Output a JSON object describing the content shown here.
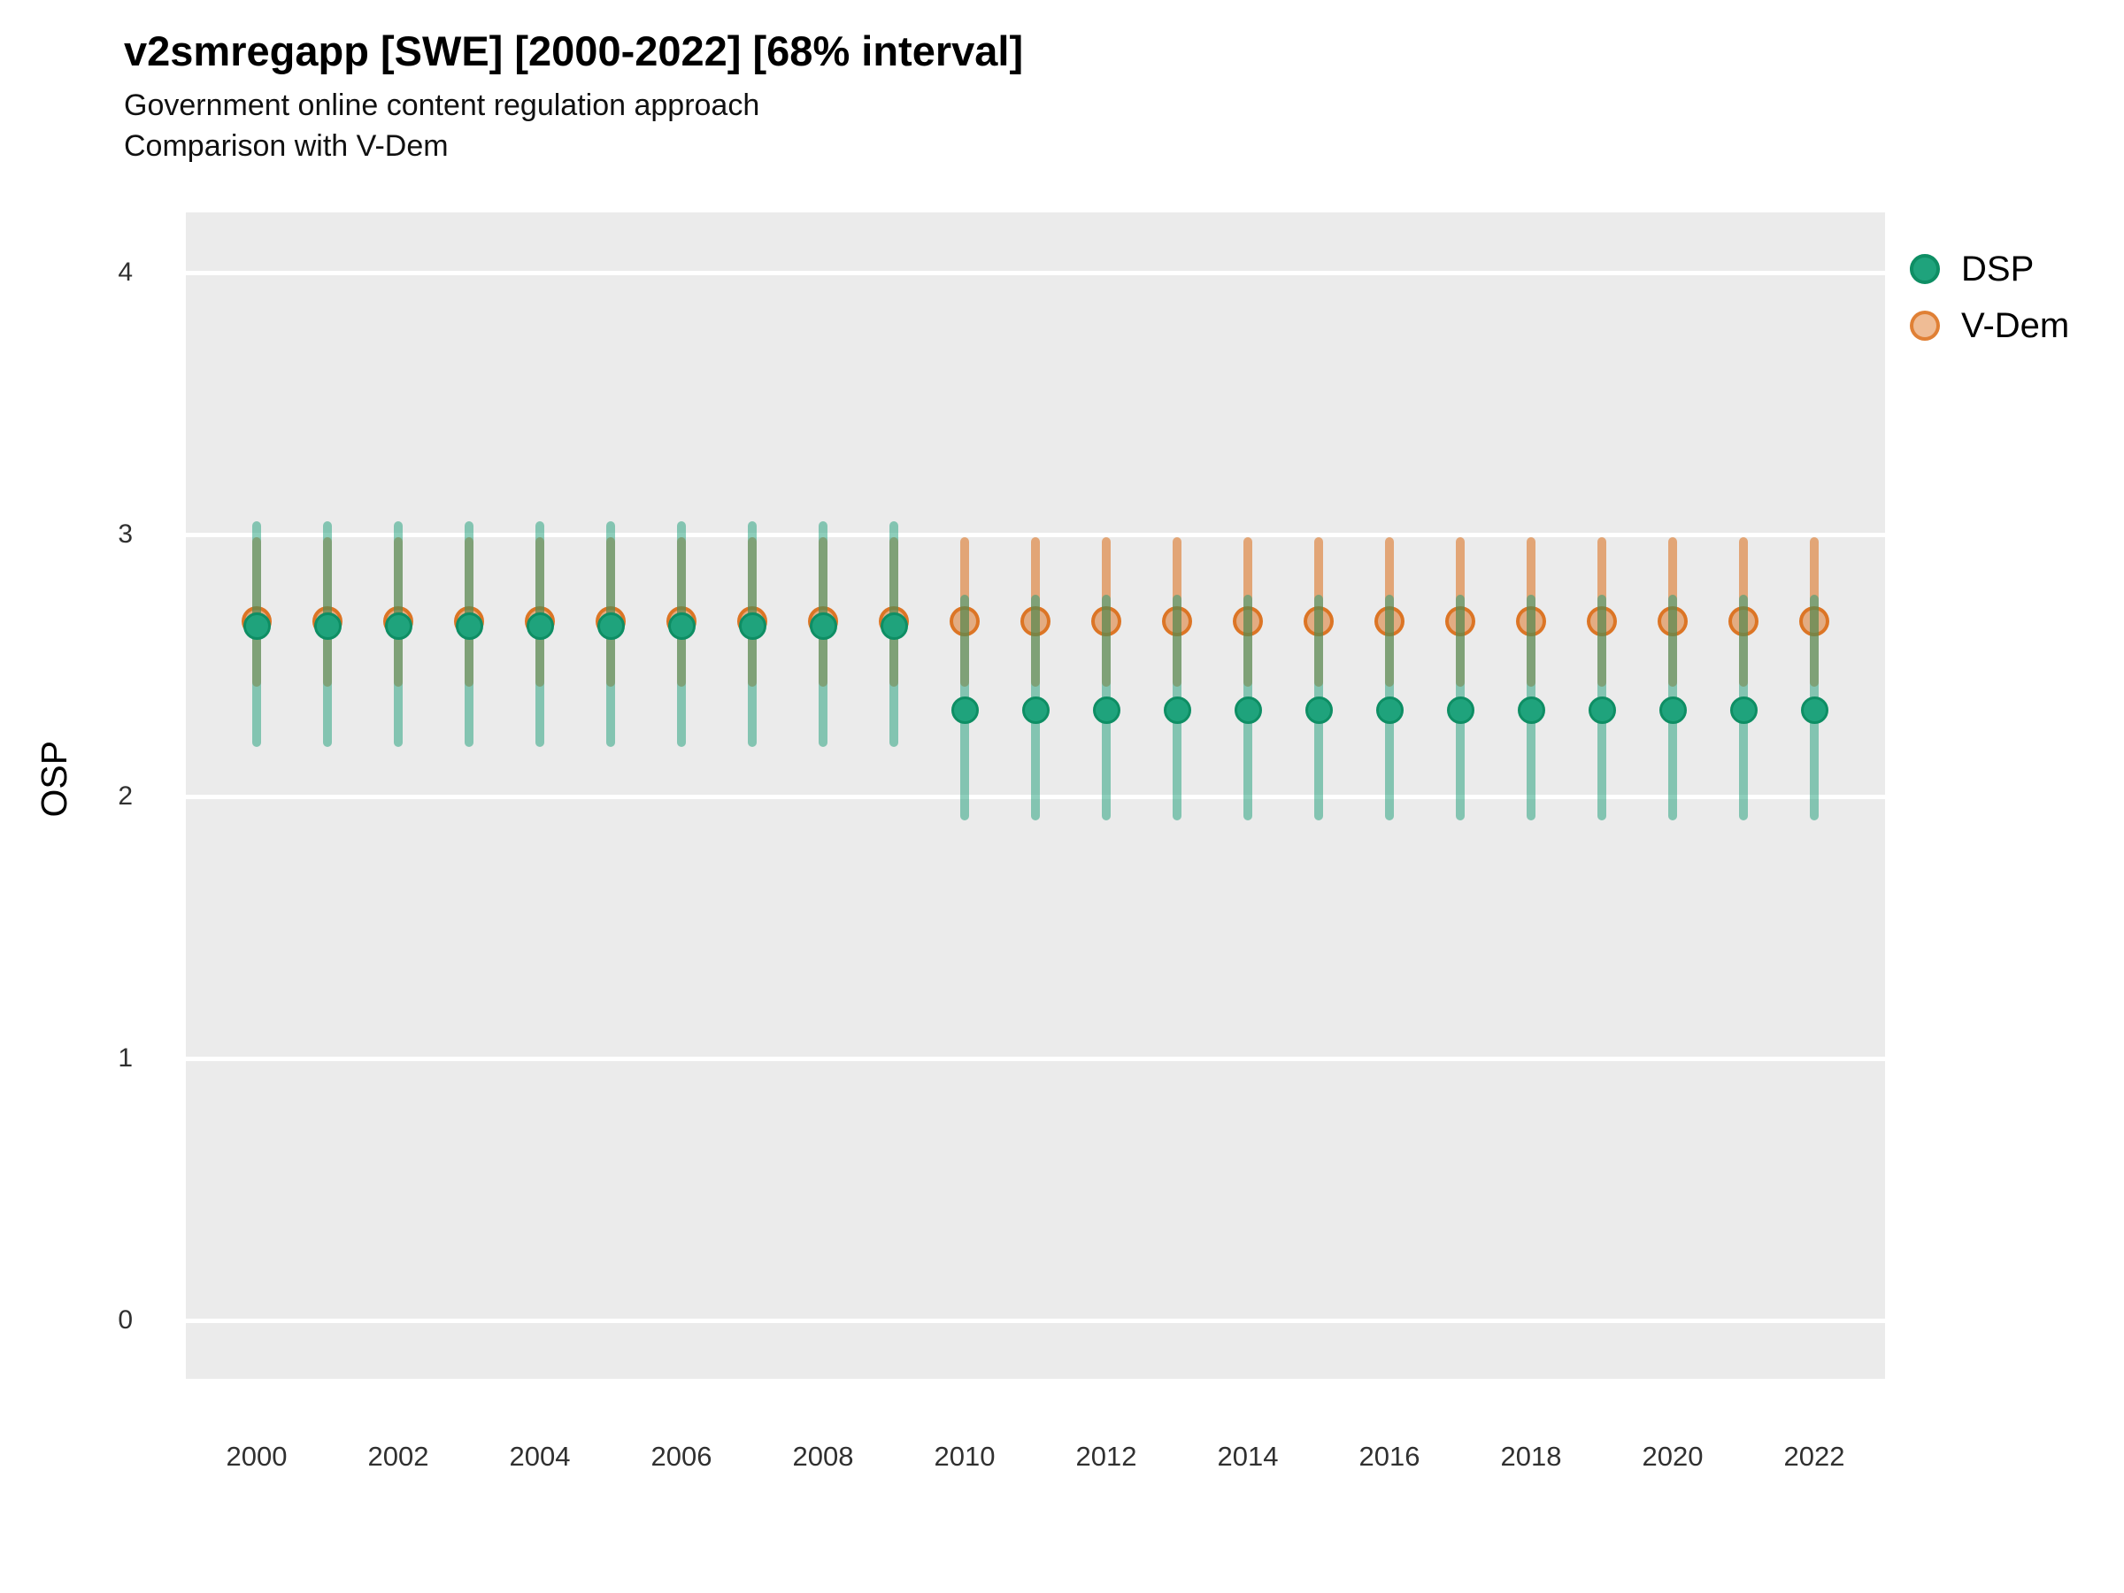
{
  "header": {
    "title": "v2smregapp [SWE] [2000-2022] [68% interval]",
    "subtitle1": "Government online content regulation approach",
    "subtitle2": "Comparison with V-Dem"
  },
  "y_axis": {
    "title": "OSP",
    "tick_labels": [
      "0",
      "1",
      "2",
      "3",
      "4"
    ]
  },
  "x_axis": {
    "tick_labels": [
      "2000",
      "2002",
      "2004",
      "2006",
      "2008",
      "2010",
      "2012",
      "2014",
      "2016",
      "2018",
      "2020",
      "2022"
    ]
  },
  "legend": {
    "items": [
      {
        "label": "DSP",
        "color": "#1B9E77"
      },
      {
        "label": "V-Dem",
        "color": "#D95F02"
      }
    ]
  },
  "colors": {
    "panel_background": "#EBEBEB",
    "gridline": "#FFFFFF",
    "dsp": "#1B9E77",
    "vdem": "#D95F02",
    "dsp_point_fill": "#1FA37C",
    "dsp_point_stroke": "#0E8E64"
  },
  "chart_data": {
    "type": "pointrange",
    "title": "v2smregapp [SWE] [2000-2022] [68% interval]",
    "subtitle": "Government online content regulation approach / Comparison with V-Dem",
    "interval": "68%",
    "xlabel": "",
    "ylabel": "OSP",
    "xlim": [
      1999,
      2023
    ],
    "ylim": [
      -0.22,
      4.22
    ],
    "y_ticks": [
      0,
      1,
      2,
      3,
      4
    ],
    "x_tick_years": [
      2000,
      2002,
      2004,
      2006,
      2008,
      2010,
      2012,
      2014,
      2016,
      2018,
      2020,
      2022
    ],
    "grid": "major-horizontal-only",
    "legend_position": "right-top",
    "x": [
      2000,
      2001,
      2002,
      2003,
      2004,
      2005,
      2006,
      2007,
      2008,
      2009,
      2010,
      2011,
      2012,
      2013,
      2014,
      2015,
      2016,
      2017,
      2018,
      2019,
      2020,
      2021,
      2022
    ],
    "series": [
      {
        "name": "V-Dem",
        "color": "#D95F02",
        "values": [
          2.67,
          2.67,
          2.67,
          2.67,
          2.67,
          2.67,
          2.67,
          2.67,
          2.67,
          2.67,
          2.67,
          2.67,
          2.67,
          2.67,
          2.67,
          2.67,
          2.67,
          2.67,
          2.67,
          2.67,
          2.67,
          2.67,
          2.67
        ],
        "lower": [
          2.42,
          2.42,
          2.42,
          2.42,
          2.42,
          2.42,
          2.42,
          2.42,
          2.42,
          2.42,
          2.42,
          2.42,
          2.42,
          2.42,
          2.42,
          2.42,
          2.42,
          2.42,
          2.42,
          2.42,
          2.42,
          2.42,
          2.42
        ],
        "upper": [
          2.99,
          2.99,
          2.99,
          2.99,
          2.99,
          2.99,
          2.99,
          2.99,
          2.99,
          2.99,
          2.99,
          2.99,
          2.99,
          2.99,
          2.99,
          2.99,
          2.99,
          2.99,
          2.99,
          2.99,
          2.99,
          2.99,
          2.99
        ]
      },
      {
        "name": "DSP",
        "color": "#1B9E77",
        "values": [
          2.65,
          2.65,
          2.65,
          2.65,
          2.65,
          2.65,
          2.65,
          2.65,
          2.65,
          2.65,
          2.33,
          2.33,
          2.33,
          2.33,
          2.33,
          2.33,
          2.33,
          2.33,
          2.33,
          2.33,
          2.33,
          2.33,
          2.33
        ],
        "lower": [
          2.19,
          2.19,
          2.19,
          2.19,
          2.19,
          2.19,
          2.19,
          2.19,
          2.19,
          2.19,
          1.91,
          1.91,
          1.91,
          1.91,
          1.91,
          1.91,
          1.91,
          1.91,
          1.91,
          1.91,
          1.91,
          1.91,
          1.91
        ],
        "upper": [
          3.05,
          3.05,
          3.05,
          3.05,
          3.05,
          3.05,
          3.05,
          3.05,
          3.05,
          3.05,
          2.77,
          2.77,
          2.77,
          2.77,
          2.77,
          2.77,
          2.77,
          2.77,
          2.77,
          2.77,
          2.77,
          2.77,
          2.77
        ]
      }
    ]
  }
}
